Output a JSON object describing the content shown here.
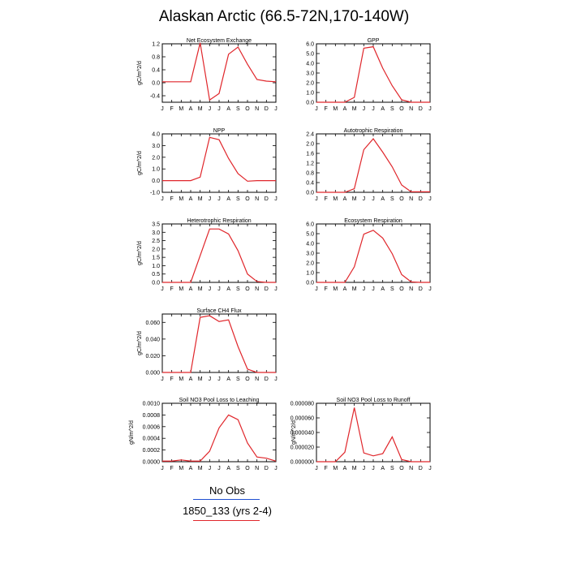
{
  "title": "Alaskan Arctic (66.5-72N,170-140W)",
  "legend": [
    {
      "label": "No Obs",
      "color": "#1f4fd1"
    },
    {
      "label": "1850_133 (yrs 2-4)",
      "color": "#e0262b"
    }
  ],
  "chart_data": [
    {
      "type": "line",
      "title": "Net Ecosystem Exchange",
      "ylabel": "gC/m^2/d",
      "xlabel": "",
      "categories": [
        "J",
        "F",
        "M",
        "A",
        "M",
        "J",
        "J",
        "A",
        "S",
        "O",
        "N",
        "D",
        "J"
      ],
      "ylim": [
        -0.6,
        1.2
      ],
      "yticks": [
        -0.4,
        0.0,
        0.4,
        0.8,
        1.2
      ],
      "ytick_labels": [
        "-0.4",
        "0.0",
        "0.4",
        "0.8",
        "1.2"
      ],
      "series": [
        {
          "values": [
            0.03,
            0.03,
            0.03,
            0.03,
            1.23,
            -0.53,
            -0.33,
            0.88,
            1.1,
            0.57,
            0.1,
            0.05,
            0.03
          ],
          "color": "#e0262b"
        }
      ]
    },
    {
      "type": "line",
      "title": "GPP",
      "ylabel": "",
      "xlabel": "",
      "categories": [
        "J",
        "F",
        "M",
        "A",
        "M",
        "J",
        "J",
        "A",
        "S",
        "O",
        "N",
        "D",
        "J"
      ],
      "ylim": [
        0,
        6
      ],
      "yticks": [
        0,
        1,
        2,
        3,
        4,
        5,
        6
      ],
      "ytick_labels": [
        "0.0",
        "1.0",
        "2.0",
        "3.0",
        "4.0",
        "5.0",
        "6.0"
      ],
      "series": [
        {
          "values": [
            0,
            0,
            0,
            0,
            0.5,
            5.55,
            5.7,
            3.5,
            1.7,
            0.25,
            0,
            0,
            0
          ],
          "color": "#e0262b"
        }
      ]
    },
    {
      "type": "line",
      "title": "NPP",
      "ylabel": "gC/m^2/d",
      "xlabel": "",
      "categories": [
        "J",
        "F",
        "M",
        "A",
        "M",
        "J",
        "J",
        "A",
        "S",
        "O",
        "N",
        "D",
        "J"
      ],
      "ylim": [
        -1,
        4
      ],
      "yticks": [
        -1,
        0,
        1,
        2,
        3,
        4
      ],
      "ytick_labels": [
        "-1.0",
        "0.0",
        "1.0",
        "2.0",
        "3.0",
        "4.0"
      ],
      "series": [
        {
          "values": [
            0,
            0,
            0,
            0,
            0.3,
            3.7,
            3.5,
            1.9,
            0.6,
            -0.05,
            0,
            0,
            0
          ],
          "color": "#e0262b"
        }
      ]
    },
    {
      "type": "line",
      "title": "Autotrophic Respiration",
      "ylabel": "",
      "xlabel": "",
      "categories": [
        "J",
        "F",
        "M",
        "A",
        "M",
        "J",
        "J",
        "A",
        "S",
        "O",
        "N",
        "D",
        "J"
      ],
      "ylim": [
        0,
        2.4
      ],
      "yticks": [
        0,
        0.4,
        0.8,
        1.2,
        1.6,
        2.0,
        2.4
      ],
      "ytick_labels": [
        "0.0",
        "0.4",
        "0.8",
        "1.2",
        "1.6",
        "2.0",
        "2.4"
      ],
      "series": [
        {
          "values": [
            0,
            0,
            0,
            0,
            0.15,
            1.75,
            2.2,
            1.65,
            1.05,
            0.3,
            0.02,
            0.02,
            0.02
          ],
          "color": "#e0262b"
        }
      ]
    },
    {
      "type": "line",
      "title": "Heterotrophic Respiration",
      "ylabel": "gC/m^2/d",
      "xlabel": "",
      "categories": [
        "J",
        "F",
        "M",
        "A",
        "M",
        "J",
        "J",
        "A",
        "S",
        "O",
        "N",
        "D",
        "J"
      ],
      "ylim": [
        0,
        3.5
      ],
      "yticks": [
        0,
        0.5,
        1,
        1.5,
        2,
        2.5,
        3,
        3.5
      ],
      "ytick_labels": [
        "0.0",
        "0.5",
        "1.0",
        "1.5",
        "2.0",
        "2.5",
        "3.0",
        "3.5"
      ],
      "series": [
        {
          "values": [
            0,
            0,
            0,
            0,
            1.6,
            3.2,
            3.2,
            2.9,
            1.9,
            0.5,
            0.05,
            0,
            0
          ],
          "color": "#e0262b"
        }
      ]
    },
    {
      "type": "line",
      "title": "Ecosystem Respiration",
      "ylabel": "",
      "xlabel": "",
      "categories": [
        "J",
        "F",
        "M",
        "A",
        "M",
        "J",
        "J",
        "A",
        "S",
        "O",
        "N",
        "D",
        "J"
      ],
      "ylim": [
        0,
        6
      ],
      "yticks": [
        0,
        1,
        2,
        3,
        4,
        5,
        6
      ],
      "ytick_labels": [
        "0.0",
        "1.0",
        "2.0",
        "3.0",
        "4.0",
        "5.0",
        "6.0"
      ],
      "series": [
        {
          "values": [
            0,
            0,
            0,
            0,
            1.6,
            4.95,
            5.35,
            4.55,
            2.95,
            0.8,
            0.05,
            0,
            0
          ],
          "color": "#e0262b"
        }
      ]
    },
    {
      "type": "line",
      "title": "Surface CH4 Flux",
      "ylabel": "gC/m^2/d",
      "xlabel": "",
      "categories": [
        "J",
        "F",
        "M",
        "A",
        "M",
        "J",
        "J",
        "A",
        "S",
        "O",
        "N",
        "D",
        "J"
      ],
      "ylim": [
        0,
        0.07
      ],
      "yticks": [
        0,
        0.02,
        0.04,
        0.06
      ],
      "ytick_labels": [
        "0.000",
        "0.020",
        "0.040",
        "0.060"
      ],
      "series": [
        {
          "values": [
            0,
            0,
            0,
            0,
            0.066,
            0.068,
            0.061,
            0.063,
            0.031,
            0.004,
            0,
            0,
            0
          ],
          "color": "#e0262b"
        }
      ]
    },
    {
      "type": "line",
      "title": "Soil NO3 Pool Loss to Leaching",
      "ylabel": "gN/m^2/d",
      "xlabel": "",
      "categories": [
        "J",
        "F",
        "M",
        "A",
        "M",
        "J",
        "J",
        "A",
        "S",
        "O",
        "N",
        "D",
        "J"
      ],
      "ylim": [
        0,
        0.001
      ],
      "yticks": [
        0,
        0.0002,
        0.0004,
        0.0006,
        0.0008,
        0.001
      ],
      "ytick_labels": [
        "0.0000",
        "0.0002",
        "0.0004",
        "0.0006",
        "0.0008",
        "0.0010"
      ],
      "series": [
        {
          "values": [
            1e-05,
            1e-05,
            3e-05,
            1e-05,
            1e-05,
            0.00018,
            0.00058,
            0.0008,
            0.00072,
            0.00032,
            8e-05,
            6e-05,
            1e-05
          ],
          "color": "#e0262b"
        }
      ]
    },
    {
      "type": "line",
      "title": "Soil NO3 Pool Loss to Runoff",
      "ylabel": "gN/m^2/d",
      "xlabel": "",
      "categories": [
        "J",
        "F",
        "M",
        "A",
        "M",
        "J",
        "J",
        "A",
        "S",
        "O",
        "N",
        "D",
        "J"
      ],
      "ylim": [
        0,
        8e-05
      ],
      "yticks": [
        0,
        2e-05,
        4e-05,
        6e-05,
        8e-05
      ],
      "ytick_labels": [
        "0.000000",
        "0.000020",
        "0.000040",
        "0.000060",
        "0.000080"
      ],
      "series": [
        {
          "values": [
            0,
            0,
            0,
            1.3e-05,
            7.4e-05,
            1.2e-05,
            8e-06,
            1.1e-05,
            3.4e-05,
            3e-06,
            0,
            0,
            0
          ],
          "color": "#e0262b"
        }
      ]
    }
  ]
}
